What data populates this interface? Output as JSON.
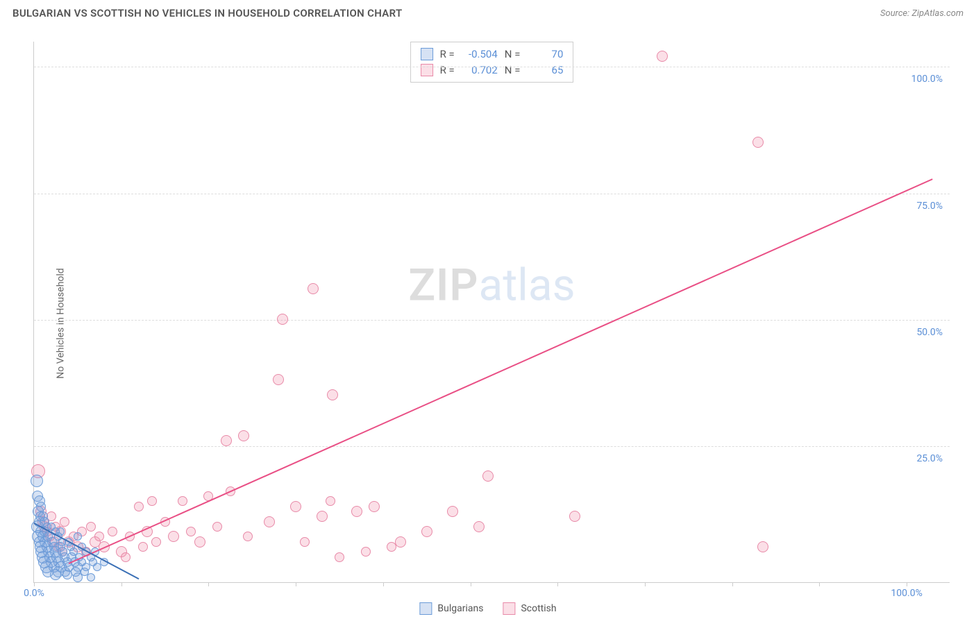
{
  "header": {
    "title": "BULGARIAN VS SCOTTISH NO VEHICLES IN HOUSEHOLD CORRELATION CHART",
    "source_label": "Source: ",
    "source_name": "ZipAtlas.com"
  },
  "ylabel": "No Vehicles in Household",
  "watermark": {
    "part1": "ZIP",
    "part2": "atlas"
  },
  "chart": {
    "type": "scatter",
    "background_color": "#ffffff",
    "grid_color": "#dddddd",
    "axis_color": "#cccccc",
    "tick_label_color": "#5b8fd6",
    "tick_fontsize": 14,
    "xlim": [
      0,
      105
    ],
    "ylim": [
      -2,
      105
    ],
    "x_ticks": [
      0,
      10,
      20,
      30,
      40,
      50,
      60,
      70,
      80,
      90,
      100
    ],
    "x_tick_labels": {
      "0": "0.0%",
      "100": "100.0%"
    },
    "y_gridlines": [
      25,
      50,
      75,
      100
    ],
    "y_tick_labels": {
      "25": "25.0%",
      "50": "50.0%",
      "75": "75.0%",
      "100": "100.0%"
    },
    "series": {
      "bulgarians": {
        "label": "Bulgarians",
        "fill": "rgba(120,160,220,0.30)",
        "stroke": "#6b9bd8",
        "line_color": "#3a6fb5",
        "R": "-0.504",
        "N": "70",
        "regression": {
          "x1": 0,
          "y1": 10,
          "x2": 12,
          "y2": -1
        },
        "marker_base_r": 7,
        "points": [
          [
            0.3,
            18,
            9
          ],
          [
            0.4,
            15,
            8
          ],
          [
            0.6,
            14,
            8
          ],
          [
            0.8,
            13,
            7
          ],
          [
            0.5,
            12,
            8
          ],
          [
            0.7,
            11,
            7
          ],
          [
            1.0,
            11,
            7
          ],
          [
            0.6,
            10,
            8
          ],
          [
            1.2,
            10,
            7
          ],
          [
            0.4,
            9,
            9
          ],
          [
            1.5,
            9,
            6
          ],
          [
            2.0,
            9,
            6
          ],
          [
            0.8,
            8,
            8
          ],
          [
            1.2,
            8,
            7
          ],
          [
            2.5,
            8,
            6
          ],
          [
            3.0,
            8,
            6
          ],
          [
            0.5,
            7,
            9
          ],
          [
            1.0,
            7,
            8
          ],
          [
            1.6,
            7,
            7
          ],
          [
            2.8,
            7,
            6
          ],
          [
            5.0,
            7,
            6
          ],
          [
            0.6,
            6,
            8
          ],
          [
            1.3,
            6,
            8
          ],
          [
            2.1,
            6,
            7
          ],
          [
            3.2,
            6,
            6
          ],
          [
            4.0,
            6,
            6
          ],
          [
            0.8,
            5,
            9
          ],
          [
            1.5,
            5,
            8
          ],
          [
            2.3,
            5,
            7
          ],
          [
            3.0,
            5,
            7
          ],
          [
            4.2,
            5,
            6
          ],
          [
            5.5,
            5,
            6
          ],
          [
            0.9,
            4,
            9
          ],
          [
            1.7,
            4,
            8
          ],
          [
            2.5,
            4,
            8
          ],
          [
            3.3,
            4,
            7
          ],
          [
            4.5,
            4,
            6
          ],
          [
            6.0,
            4,
            6
          ],
          [
            7.0,
            4,
            6
          ],
          [
            1.0,
            3,
            9
          ],
          [
            1.8,
            3,
            8
          ],
          [
            2.6,
            3,
            8
          ],
          [
            3.5,
            3,
            7
          ],
          [
            4.3,
            3,
            7
          ],
          [
            5.2,
            3,
            6
          ],
          [
            6.5,
            3,
            6
          ],
          [
            1.2,
            2,
            9
          ],
          [
            2.0,
            2,
            8
          ],
          [
            2.9,
            2,
            8
          ],
          [
            3.8,
            2,
            7
          ],
          [
            4.7,
            2,
            7
          ],
          [
            5.5,
            2,
            6
          ],
          [
            6.8,
            2,
            6
          ],
          [
            8.0,
            2,
            6
          ],
          [
            1.4,
            1,
            9
          ],
          [
            2.3,
            1,
            8
          ],
          [
            3.1,
            1,
            8
          ],
          [
            4.0,
            1,
            7
          ],
          [
            5.0,
            1,
            7
          ],
          [
            6.0,
            1,
            6
          ],
          [
            7.2,
            1,
            6
          ],
          [
            1.6,
            0,
            8
          ],
          [
            2.8,
            0,
            8
          ],
          [
            3.6,
            0,
            7
          ],
          [
            4.8,
            0,
            7
          ],
          [
            5.8,
            0,
            6
          ],
          [
            2.5,
            -0.5,
            8
          ],
          [
            3.8,
            -0.5,
            7
          ],
          [
            5.0,
            -1,
            7
          ],
          [
            6.5,
            -1,
            6
          ]
        ]
      },
      "scottish": {
        "label": "Scottish",
        "fill": "rgba(240,140,170,0.28)",
        "stroke": "#e88aa8",
        "line_color": "#e94f85",
        "R": "0.702",
        "N": "65",
        "regression": {
          "x1": 4,
          "y1": 2,
          "x2": 103,
          "y2": 78
        },
        "marker_base_r": 8,
        "points": [
          [
            0.5,
            20,
            10
          ],
          [
            0.8,
            12,
            8
          ],
          [
            1.0,
            10,
            8
          ],
          [
            1.2,
            9,
            8
          ],
          [
            1.5,
            8,
            7
          ],
          [
            1.8,
            7,
            7
          ],
          [
            2.0,
            11,
            7
          ],
          [
            2.3,
            6,
            8
          ],
          [
            2.5,
            9,
            7
          ],
          [
            2.8,
            5,
            7
          ],
          [
            3.0,
            8,
            8
          ],
          [
            3.3,
            4,
            7
          ],
          [
            3.5,
            10,
            7
          ],
          [
            4.0,
            6,
            8
          ],
          [
            4.5,
            7,
            7
          ],
          [
            5.0,
            5,
            8
          ],
          [
            5.5,
            8,
            7
          ],
          [
            6.0,
            4,
            7
          ],
          [
            6.5,
            9,
            7
          ],
          [
            7.0,
            6,
            8
          ],
          [
            7.5,
            7,
            7
          ],
          [
            8.0,
            5,
            8
          ],
          [
            9.0,
            8,
            7
          ],
          [
            10.0,
            4,
            8
          ],
          [
            11.0,
            7,
            7
          ],
          [
            12.0,
            13,
            7
          ],
          [
            13.0,
            8,
            8
          ],
          [
            13.5,
            14,
            7
          ],
          [
            14.0,
            6,
            7
          ],
          [
            15.0,
            10,
            7
          ],
          [
            16.0,
            7,
            8
          ],
          [
            17.0,
            14,
            7
          ],
          [
            18.0,
            8,
            7
          ],
          [
            19.0,
            6,
            8
          ],
          [
            20.0,
            15,
            7
          ],
          [
            21.0,
            9,
            7
          ],
          [
            22.0,
            26,
            8
          ],
          [
            22.5,
            16,
            7
          ],
          [
            24.0,
            27,
            8
          ],
          [
            24.5,
            7,
            7
          ],
          [
            27.0,
            10,
            8
          ],
          [
            28.0,
            38,
            8
          ],
          [
            28.5,
            50,
            8
          ],
          [
            30.0,
            13,
            8
          ],
          [
            31.0,
            6,
            7
          ],
          [
            32.0,
            56,
            8
          ],
          [
            33.0,
            11,
            8
          ],
          [
            34.0,
            14,
            7
          ],
          [
            34.2,
            35,
            8
          ],
          [
            35.0,
            3,
            7
          ],
          [
            37.0,
            12,
            8
          ],
          [
            38.0,
            4,
            7
          ],
          [
            39.0,
            13,
            8
          ],
          [
            41.0,
            5,
            7
          ],
          [
            42.0,
            6,
            8
          ],
          [
            45.0,
            8,
            8
          ],
          [
            48.0,
            12,
            8
          ],
          [
            51.0,
            9,
            8
          ],
          [
            52.0,
            19,
            8
          ],
          [
            62.0,
            11,
            8
          ],
          [
            72.0,
            102,
            8
          ],
          [
            83.0,
            85,
            8
          ],
          [
            83.5,
            5,
            8
          ],
          [
            10.5,
            3,
            7
          ],
          [
            12.5,
            5,
            7
          ]
        ]
      }
    }
  },
  "stats_box": {
    "R_label": "R =",
    "N_label": "N ="
  }
}
